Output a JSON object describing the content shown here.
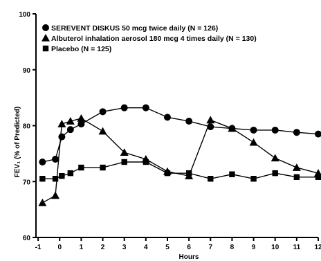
{
  "chart_data": {
    "type": "line",
    "title": "",
    "xlabel": "Hours",
    "ylabel": "FEV₁ (% of Predicted)",
    "xlim": [
      -1.1,
      12
    ],
    "ylim": [
      60,
      100
    ],
    "xticks": [
      -1,
      0,
      1,
      2,
      3,
      4,
      5,
      6,
      7,
      8,
      9,
      10,
      11,
      12
    ],
    "yticks": [
      60,
      70,
      80,
      90,
      100
    ],
    "grid": false,
    "legend_position": "top-left",
    "series": [
      {
        "name": "SEREVENT DISKUS 50 mcg twice daily (N = 126)",
        "marker": "circle",
        "x": [
          -0.8,
          -0.2,
          0.1,
          0.5,
          1,
          2,
          3,
          4,
          5,
          6,
          7,
          8,
          9,
          10,
          11,
          12
        ],
        "y": [
          73.5,
          74.0,
          78.0,
          79.3,
          80.3,
          82.5,
          83.2,
          83.2,
          81.5,
          80.8,
          79.8,
          79.5,
          79.2,
          79.2,
          78.8,
          78.5
        ]
      },
      {
        "name": "Albuterol inhalation aerosol 180 mcg 4 times daily (N = 130)",
        "marker": "triangle",
        "x": [
          -0.8,
          -0.2,
          0.1,
          0.5,
          1,
          2,
          3,
          4,
          5,
          6,
          7,
          8,
          9,
          10,
          11,
          12
        ],
        "y": [
          66.2,
          67.5,
          80.3,
          80.8,
          81.3,
          79.0,
          75.2,
          74.0,
          71.8,
          71.0,
          81.0,
          79.5,
          77.0,
          74.2,
          72.5,
          71.5
        ]
      },
      {
        "name": "Placebo (N = 125)",
        "marker": "square",
        "x": [
          -0.8,
          -0.2,
          0.1,
          0.5,
          1,
          2,
          3,
          4,
          5,
          6,
          7,
          8,
          9,
          10,
          11,
          12
        ],
        "y": [
          70.5,
          70.5,
          71.0,
          71.5,
          72.5,
          72.5,
          73.5,
          73.5,
          71.5,
          71.5,
          70.5,
          71.3,
          70.5,
          71.5,
          70.8,
          70.8
        ]
      }
    ]
  }
}
